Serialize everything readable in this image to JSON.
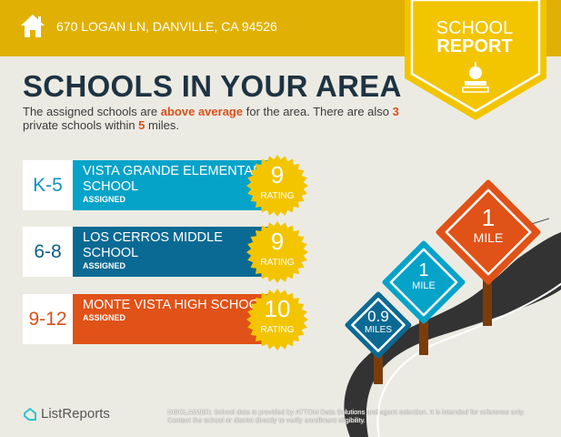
{
  "header": {
    "address": "670 LOGAN LN, DANVILLE, CA 94526",
    "home_icon": "house-icon",
    "badge_line1": "SCHOOL",
    "badge_line2": "REPORT",
    "badge_icon": "apple-on-books-icon"
  },
  "title": "SCHOOLS IN YOUR AREA",
  "summary": {
    "p1": "The assigned schools are ",
    "highlight1": "above average",
    "p2": " for the area. There are also ",
    "count": "3",
    "p3": " private schools within ",
    "miles": "5",
    "p4": " miles."
  },
  "schools": [
    {
      "grade": "K-5",
      "name": "VISTA GRANDE ELEMENTARY SCHOOL",
      "status": "ASSIGNED",
      "rating": "9",
      "rating_label": "RATING",
      "color": "#06a3c9",
      "grade_color": "#1393b4"
    },
    {
      "grade": "6-8",
      "name": "LOS CERROS MIDDLE SCHOOL",
      "status": "ASSIGNED",
      "rating": "9",
      "rating_label": "RATING",
      "color": "#0b6a93",
      "grade_color": "#0b5f86"
    },
    {
      "grade": "9-12",
      "name": "MONTE VISTA HIGH SCHOOL",
      "status": "ASSIGNED",
      "rating": "10",
      "rating_label": "RATING",
      "color": "#e05217",
      "grade_color": "#d8501a"
    }
  ],
  "signs": [
    {
      "distance": "0.9",
      "unit": "MILES",
      "color": "#0b6a93"
    },
    {
      "distance": "1",
      "unit": "MILE",
      "color": "#06a3c9"
    },
    {
      "distance": "1",
      "unit": "MILE",
      "color": "#e05217"
    }
  ],
  "footer": {
    "logo": "ListReports",
    "disclaimer_label": "DISCLAIMER:",
    "disclaimer": " School data is provided by ATTOM Data Solutions and agent selection. It is intended for reference only. Contact the school or district directly to verify enrollment eligibility."
  },
  "colors": {
    "header": "#e0b104",
    "badge": "#f2c500",
    "accent": "#d8501a",
    "title": "#1e3342"
  }
}
